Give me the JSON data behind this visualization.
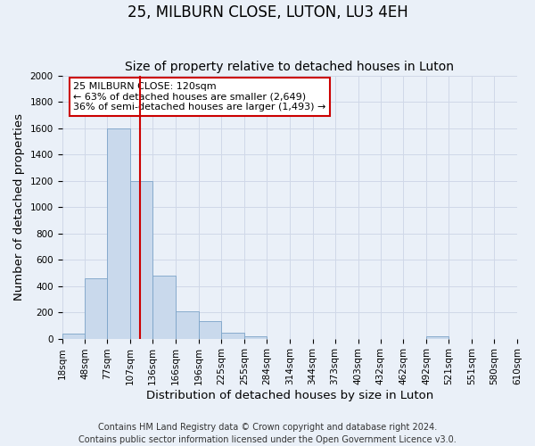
{
  "title": "25, MILBURN CLOSE, LUTON, LU3 4EH",
  "subtitle": "Size of property relative to detached houses in Luton",
  "xlabel": "Distribution of detached houses by size in Luton",
  "ylabel": "Number of detached properties",
  "bin_edges": [
    18,
    48,
    77,
    107,
    136,
    166,
    196,
    225,
    255,
    284,
    314,
    344,
    373,
    403,
    432,
    462,
    492,
    521,
    551,
    580,
    610
  ],
  "bar_heights": [
    35,
    460,
    1600,
    1200,
    480,
    210,
    130,
    45,
    20,
    0,
    0,
    0,
    0,
    0,
    0,
    0,
    20,
    0,
    0,
    0
  ],
  "bar_color": "#c9d9ec",
  "bar_edgecolor": "#7ba3c8",
  "property_size": 120,
  "red_line_color": "#cc0000",
  "annotation_title": "25 MILBURN CLOSE: 120sqm",
  "annotation_line1": "← 63% of detached houses are smaller (2,649)",
  "annotation_line2": "36% of semi-detached houses are larger (1,493) →",
  "annotation_box_edgecolor": "#cc0000",
  "annotation_box_facecolor": "#ffffff",
  "ylim": [
    0,
    2000
  ],
  "yticks": [
    0,
    200,
    400,
    600,
    800,
    1000,
    1200,
    1400,
    1600,
    1800,
    2000
  ],
  "background_color": "#eaf0f8",
  "grid_color": "#d0d8e8",
  "footer1": "Contains HM Land Registry data © Crown copyright and database right 2024.",
  "footer2": "Contains public sector information licensed under the Open Government Licence v3.0.",
  "title_fontsize": 12,
  "subtitle_fontsize": 10,
  "label_fontsize": 9.5,
  "tick_fontsize": 7.5,
  "footer_fontsize": 7,
  "annotation_fontsize": 8
}
